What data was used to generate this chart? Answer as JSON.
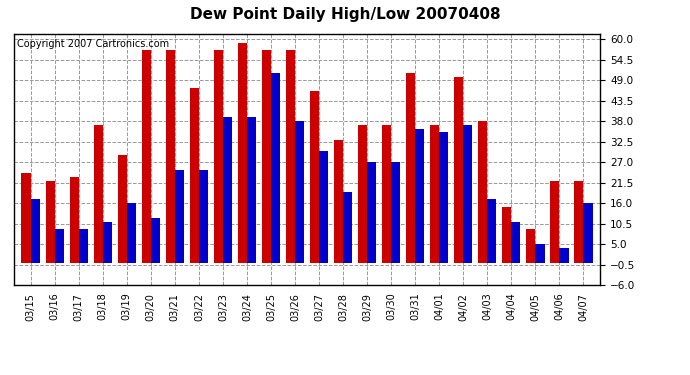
{
  "title": "Dew Point Daily High/Low 20070408",
  "copyright": "Copyright 2007 Cartronics.com",
  "dates": [
    "03/15",
    "03/16",
    "03/17",
    "03/18",
    "03/19",
    "03/20",
    "03/21",
    "03/22",
    "03/23",
    "03/24",
    "03/25",
    "03/26",
    "03/27",
    "03/28",
    "03/29",
    "03/30",
    "03/31",
    "04/01",
    "04/02",
    "04/03",
    "04/04",
    "04/05",
    "04/06",
    "04/07"
  ],
  "highs": [
    24,
    22,
    23,
    37,
    29,
    57,
    57,
    47,
    57,
    59,
    57,
    57,
    46,
    33,
    37,
    37,
    51,
    37,
    50,
    38,
    15,
    9,
    22,
    22
  ],
  "lows": [
    17,
    9,
    9,
    11,
    16,
    12,
    25,
    25,
    39,
    39,
    51,
    38,
    30,
    19,
    27,
    27,
    36,
    35,
    37,
    17,
    11,
    5,
    4,
    16
  ],
  "high_color": "#cc0000",
  "low_color": "#0000cc",
  "background_color": "#ffffff",
  "plot_bg_color": "#ffffff",
  "grid_color": "#999999",
  "ylim": [
    -6.0,
    61.5
  ],
  "yticks": [
    -6.0,
    -0.5,
    5.0,
    10.5,
    16.0,
    21.5,
    27.0,
    32.5,
    38.0,
    43.5,
    49.0,
    54.5,
    60.0
  ],
  "bar_width": 0.38,
  "figsize": [
    6.9,
    3.75
  ],
  "dpi": 100
}
